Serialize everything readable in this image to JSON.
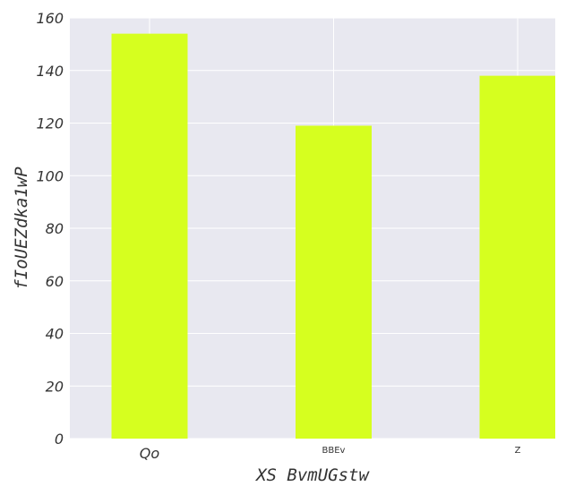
{
  "chart_data": {
    "type": "bar",
    "title": "",
    "xlabel": "XS BvmUGstw",
    "ylabel": "fIoUEZdka1wP",
    "categories": [
      "Qo",
      "BBEv",
      "Z"
    ],
    "values": [
      154,
      119,
      138
    ],
    "ylim": [
      0,
      160
    ],
    "yticks": [
      0,
      20,
      40,
      60,
      80,
      100,
      120,
      140,
      160
    ],
    "grid": true,
    "bar_color": "#d6ff1f",
    "background_color": "#e8e8f0",
    "grid_color": "#ffffff"
  }
}
